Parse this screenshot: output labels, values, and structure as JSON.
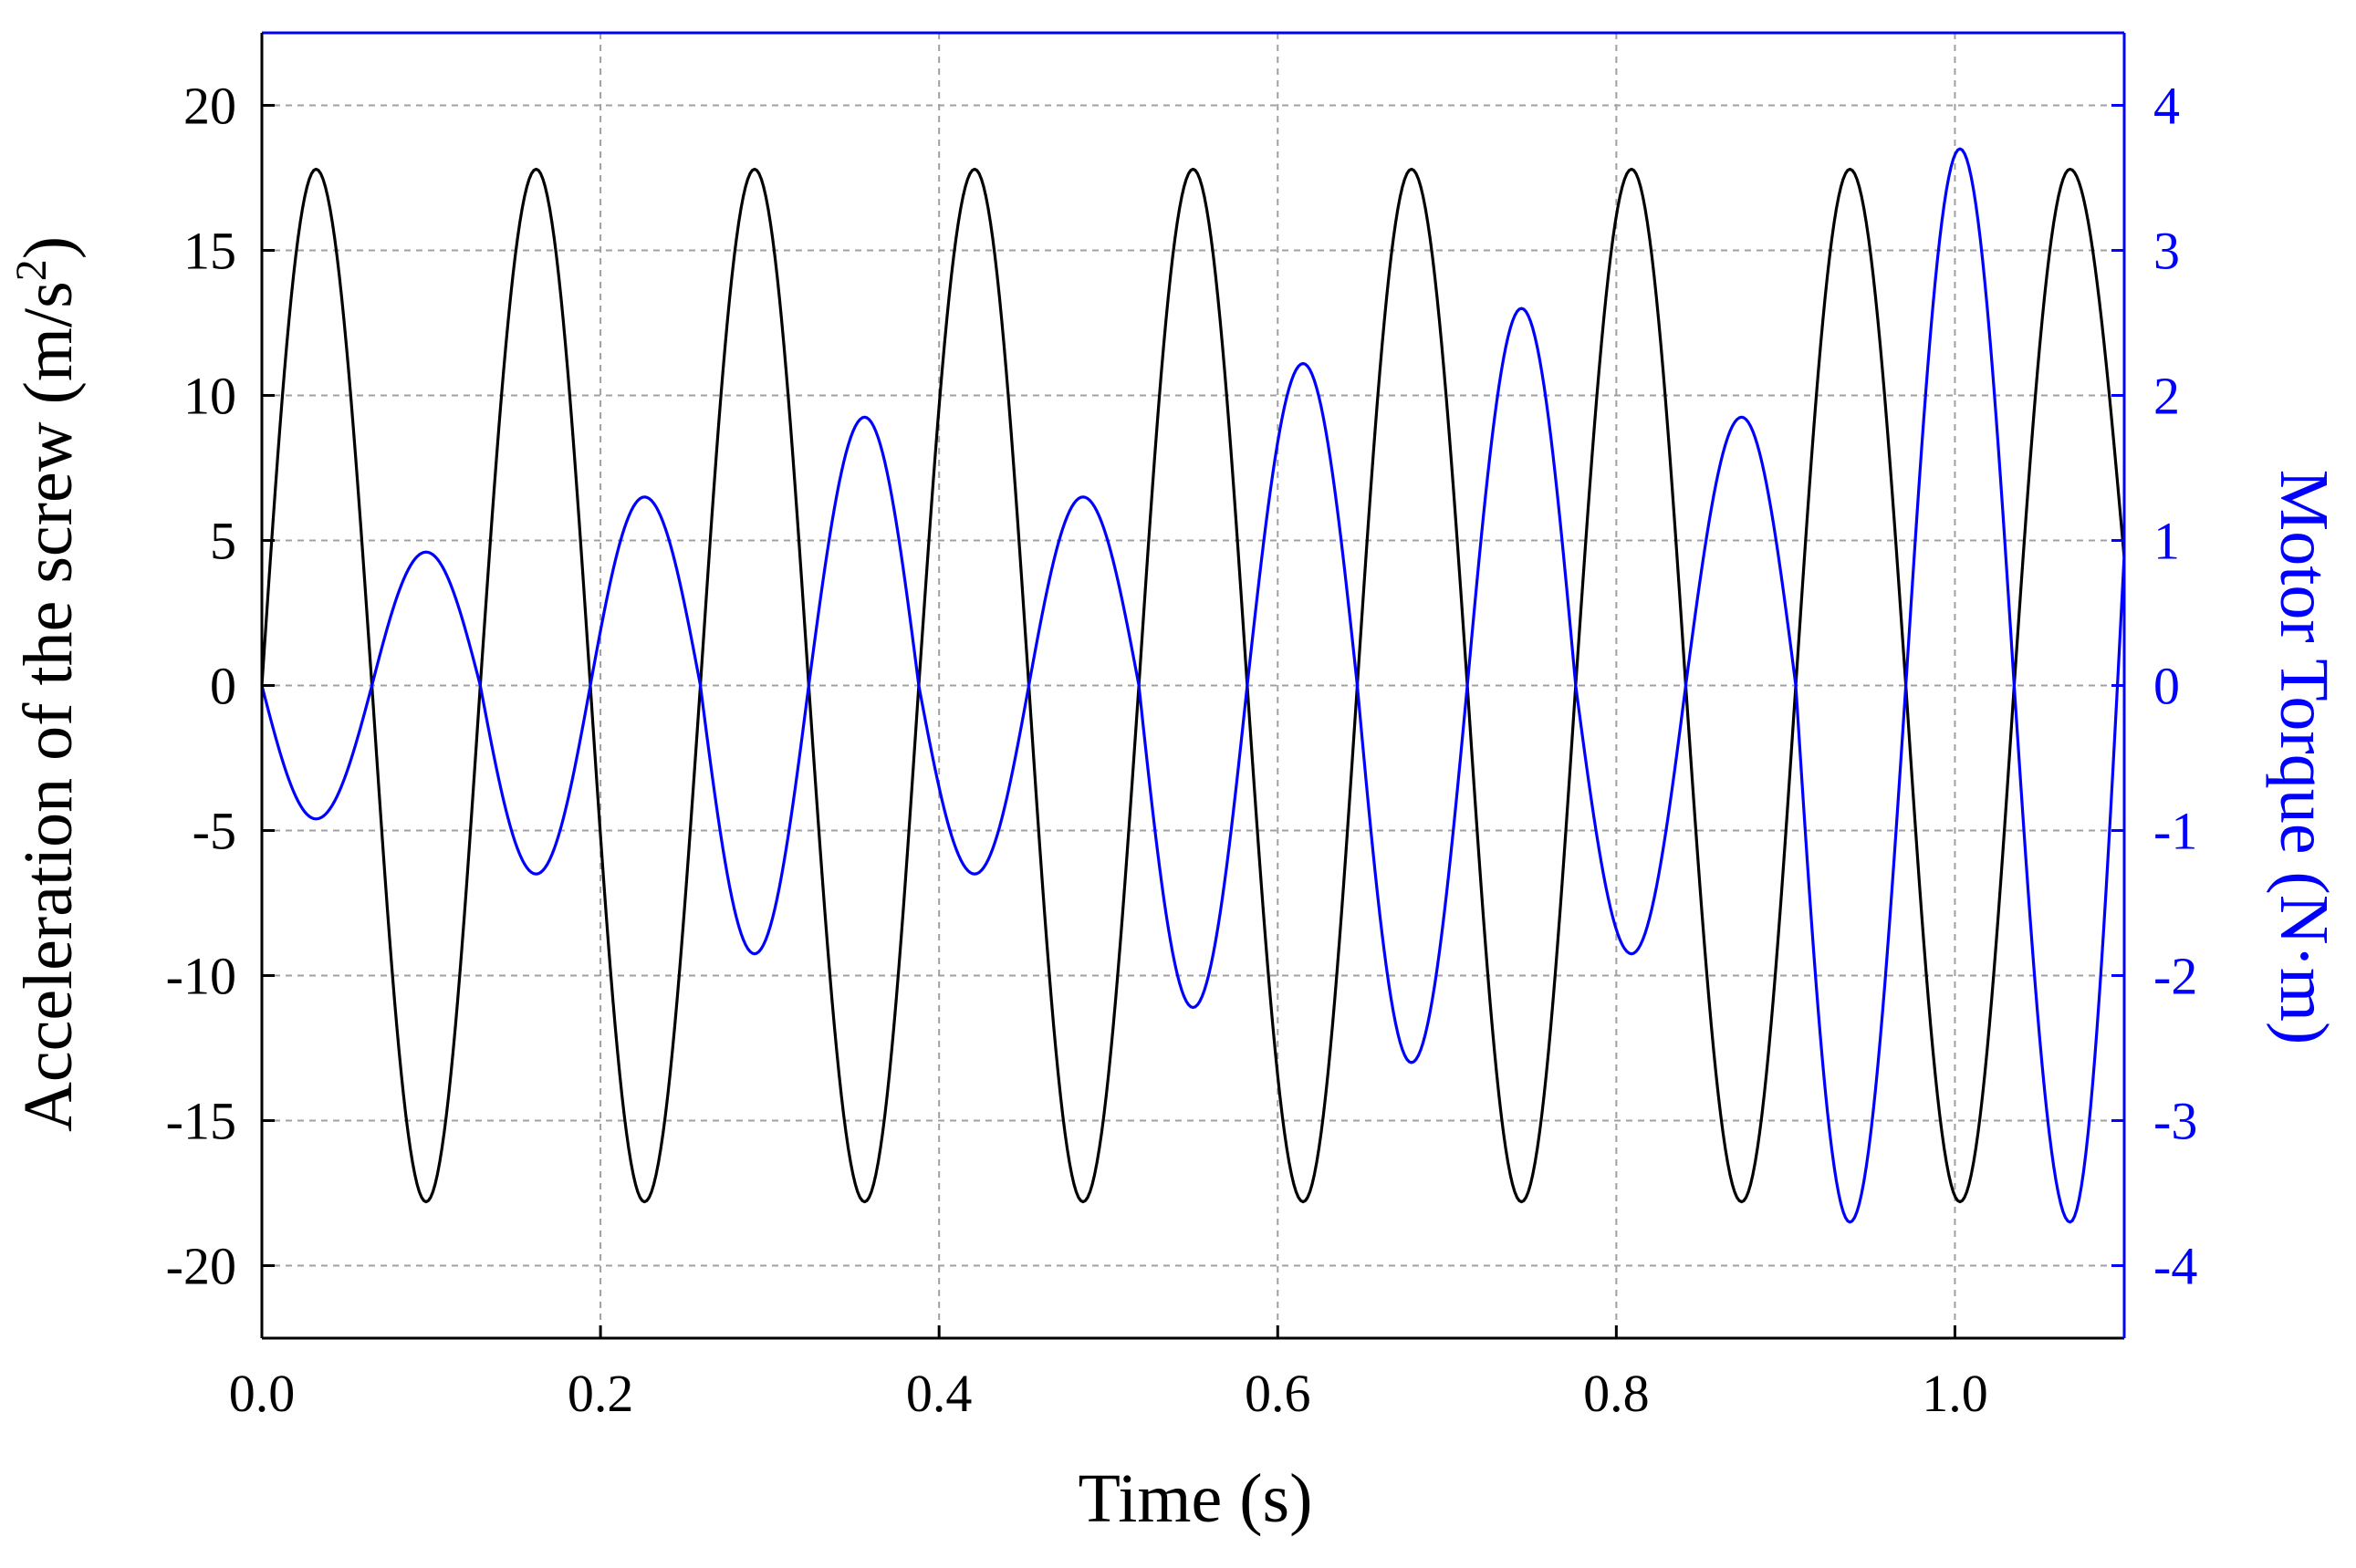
{
  "chart_data": {
    "type": "line",
    "xlabel": "Time (s)",
    "ylabel_left_main": "Acceleration of the screw (m/s",
    "ylabel_left_sup": "2",
    "ylabel_left_close": ")",
    "ylabel_right": "Motor Torque (N·m)",
    "xlim": [
      0,
      1.1
    ],
    "ylim_left": [
      -22.5,
      22.5
    ],
    "ylim_right": [
      -4.5,
      4.5
    ],
    "x_ticks": [
      0.0,
      0.2,
      0.4,
      0.6,
      0.8,
      1.0
    ],
    "x_tick_labels": [
      "0.0",
      "0.2",
      "0.4",
      "0.6",
      "0.8",
      "1.0"
    ],
    "y_left_ticks": [
      20,
      15,
      10,
      5,
      0,
      -5,
      -10,
      -15,
      -20
    ],
    "y_left_tick_labels": [
      "20",
      "15",
      "10",
      "5",
      "0",
      "-5",
      "-10",
      "-15",
      "-20"
    ],
    "y_right_ticks": [
      4,
      3,
      2,
      1,
      0,
      -1,
      -2,
      -3,
      -4
    ],
    "y_right_tick_labels": [
      "4",
      "3",
      "2",
      "1",
      "0",
      "-1",
      "-2",
      "-3",
      "-4"
    ],
    "grid": true,
    "colors": {
      "acceleration": "#000000",
      "torque": "#0000ff",
      "grid": "#a0a0a0"
    },
    "series": [
      {
        "axis": "left",
        "color": "#000000",
        "points": [
          [
            0.0,
            0
          ],
          [
            0.032,
            17.8
          ],
          [
            0.065,
            0
          ],
          [
            0.097,
            -17.8
          ],
          [
            0.129,
            0
          ],
          [
            0.162,
            17.8
          ],
          [
            0.194,
            0
          ],
          [
            0.226,
            -17.8
          ],
          [
            0.259,
            0
          ],
          [
            0.291,
            17.8
          ],
          [
            0.323,
            0
          ],
          [
            0.356,
            -17.8
          ],
          [
            0.388,
            0
          ],
          [
            0.421,
            17.8
          ],
          [
            0.453,
            0
          ],
          [
            0.485,
            -17.8
          ],
          [
            0.518,
            0
          ],
          [
            0.55,
            17.8
          ],
          [
            0.582,
            0
          ],
          [
            0.615,
            -17.8
          ],
          [
            0.647,
            0
          ],
          [
            0.679,
            17.8
          ],
          [
            0.712,
            0
          ],
          [
            0.744,
            -17.8
          ],
          [
            0.776,
            0
          ],
          [
            0.809,
            17.8
          ],
          [
            0.841,
            0
          ],
          [
            0.874,
            -17.8
          ],
          [
            0.906,
            0
          ],
          [
            0.938,
            17.8
          ],
          [
            0.971,
            0
          ],
          [
            1.003,
            -17.8
          ],
          [
            1.035,
            0
          ],
          [
            1.068,
            17.8
          ],
          [
            1.1,
            4.4
          ]
        ]
      },
      {
        "axis": "right",
        "color": "#0000ff",
        "points": [
          [
            0.0,
            0
          ],
          [
            0.032,
            -0.92
          ],
          [
            0.065,
            0
          ],
          [
            0.097,
            0.92
          ],
          [
            0.129,
            0
          ],
          [
            0.162,
            -1.3
          ],
          [
            0.194,
            0
          ],
          [
            0.226,
            1.3
          ],
          [
            0.259,
            0
          ],
          [
            0.291,
            -1.85
          ],
          [
            0.323,
            0
          ],
          [
            0.356,
            1.85
          ],
          [
            0.388,
            0
          ],
          [
            0.421,
            -1.3
          ],
          [
            0.453,
            0
          ],
          [
            0.485,
            1.3
          ],
          [
            0.518,
            0
          ],
          [
            0.55,
            -2.22
          ],
          [
            0.582,
            0
          ],
          [
            0.615,
            2.22
          ],
          [
            0.647,
            0
          ],
          [
            0.679,
            -2.6
          ],
          [
            0.712,
            0
          ],
          [
            0.744,
            2.6
          ],
          [
            0.776,
            0
          ],
          [
            0.809,
            -1.85
          ],
          [
            0.841,
            0
          ],
          [
            0.874,
            1.85
          ],
          [
            0.906,
            0
          ],
          [
            0.938,
            -3.7
          ],
          [
            0.971,
            0
          ],
          [
            1.003,
            3.7
          ],
          [
            1.035,
            0
          ],
          [
            1.068,
            -3.7
          ],
          [
            1.1,
            0.9
          ]
        ]
      }
    ]
  }
}
